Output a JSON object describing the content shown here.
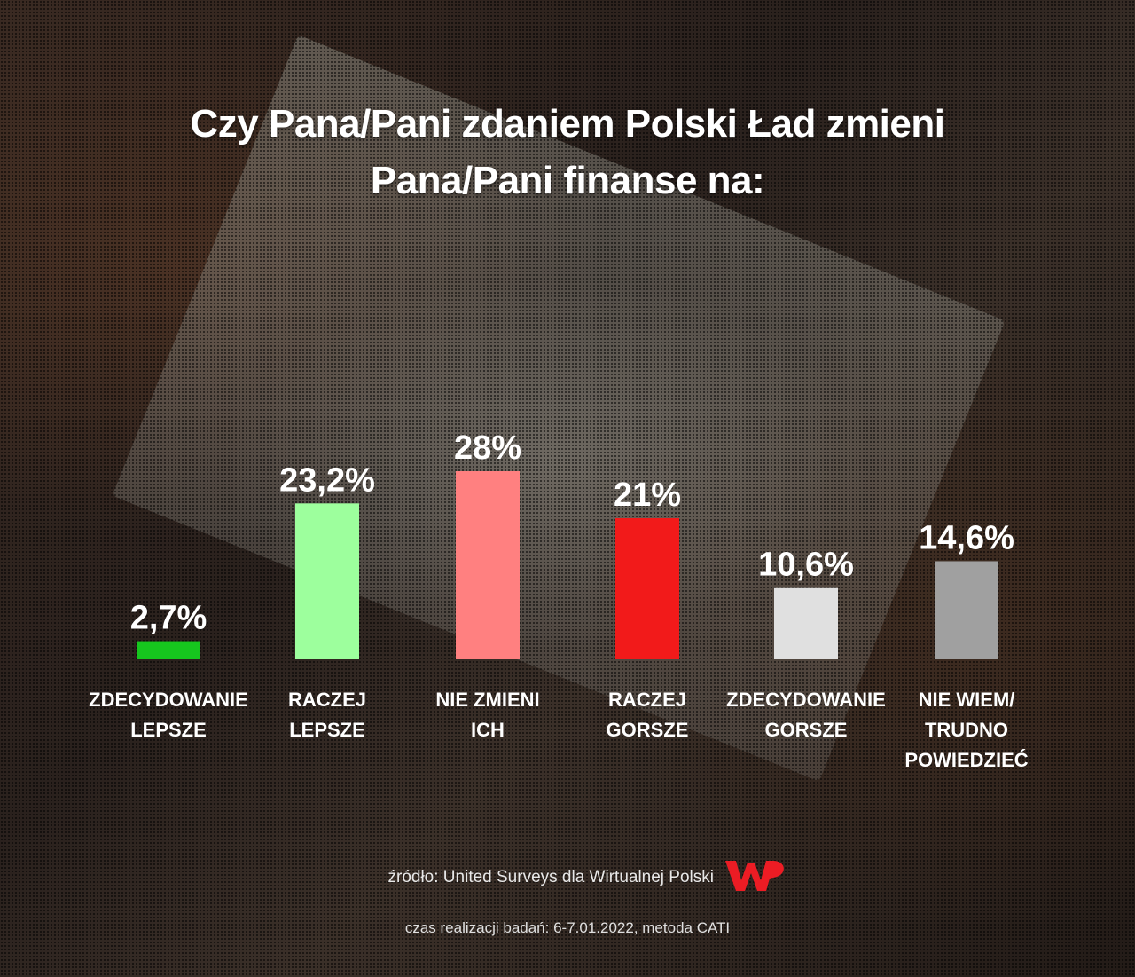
{
  "chart_data": {
    "type": "bar",
    "title": "Czy Pana/Pani zdaniem Polski Ład zmieni Pana/Pani finanse na:",
    "categories": [
      [
        "ZDECYDOWANIE",
        "LEPSZE"
      ],
      [
        "RACZEJ",
        "LEPSZE"
      ],
      [
        "NIE ZMIENI",
        "ICH"
      ],
      [
        "RACZEJ",
        "GORSZE"
      ],
      [
        "ZDECYDOWANIE",
        "GORSZE"
      ],
      [
        "NIE WIEM/",
        "TRUDNO",
        "POWIEDZIEĆ"
      ]
    ],
    "values": [
      2.7,
      23.2,
      28,
      21,
      10.6,
      14.6
    ],
    "value_labels": [
      "2,7%",
      "23,2%",
      "28%",
      "21%",
      "10,6%",
      "14,6%"
    ],
    "colors": [
      "#16c61e",
      "#9dff9d",
      "#ff8080",
      "#f21a1a",
      "#e0e0e0",
      "#a0a0a0"
    ],
    "ylim": [
      0,
      28
    ],
    "grid": false,
    "legend": "none"
  },
  "title_lines": [
    "Czy Pana/Pani zdaniem Polski Ład zmieni",
    "Pana/Pani finanse na:"
  ],
  "footer": {
    "source": "źródło: United Surveys dla Wirtualnej Polski",
    "method": "czas realizacji badań: 6-7.01.2022, metoda CATI",
    "logo_icon": "wp-logo-icon",
    "logo_color": "#ec1c24"
  }
}
